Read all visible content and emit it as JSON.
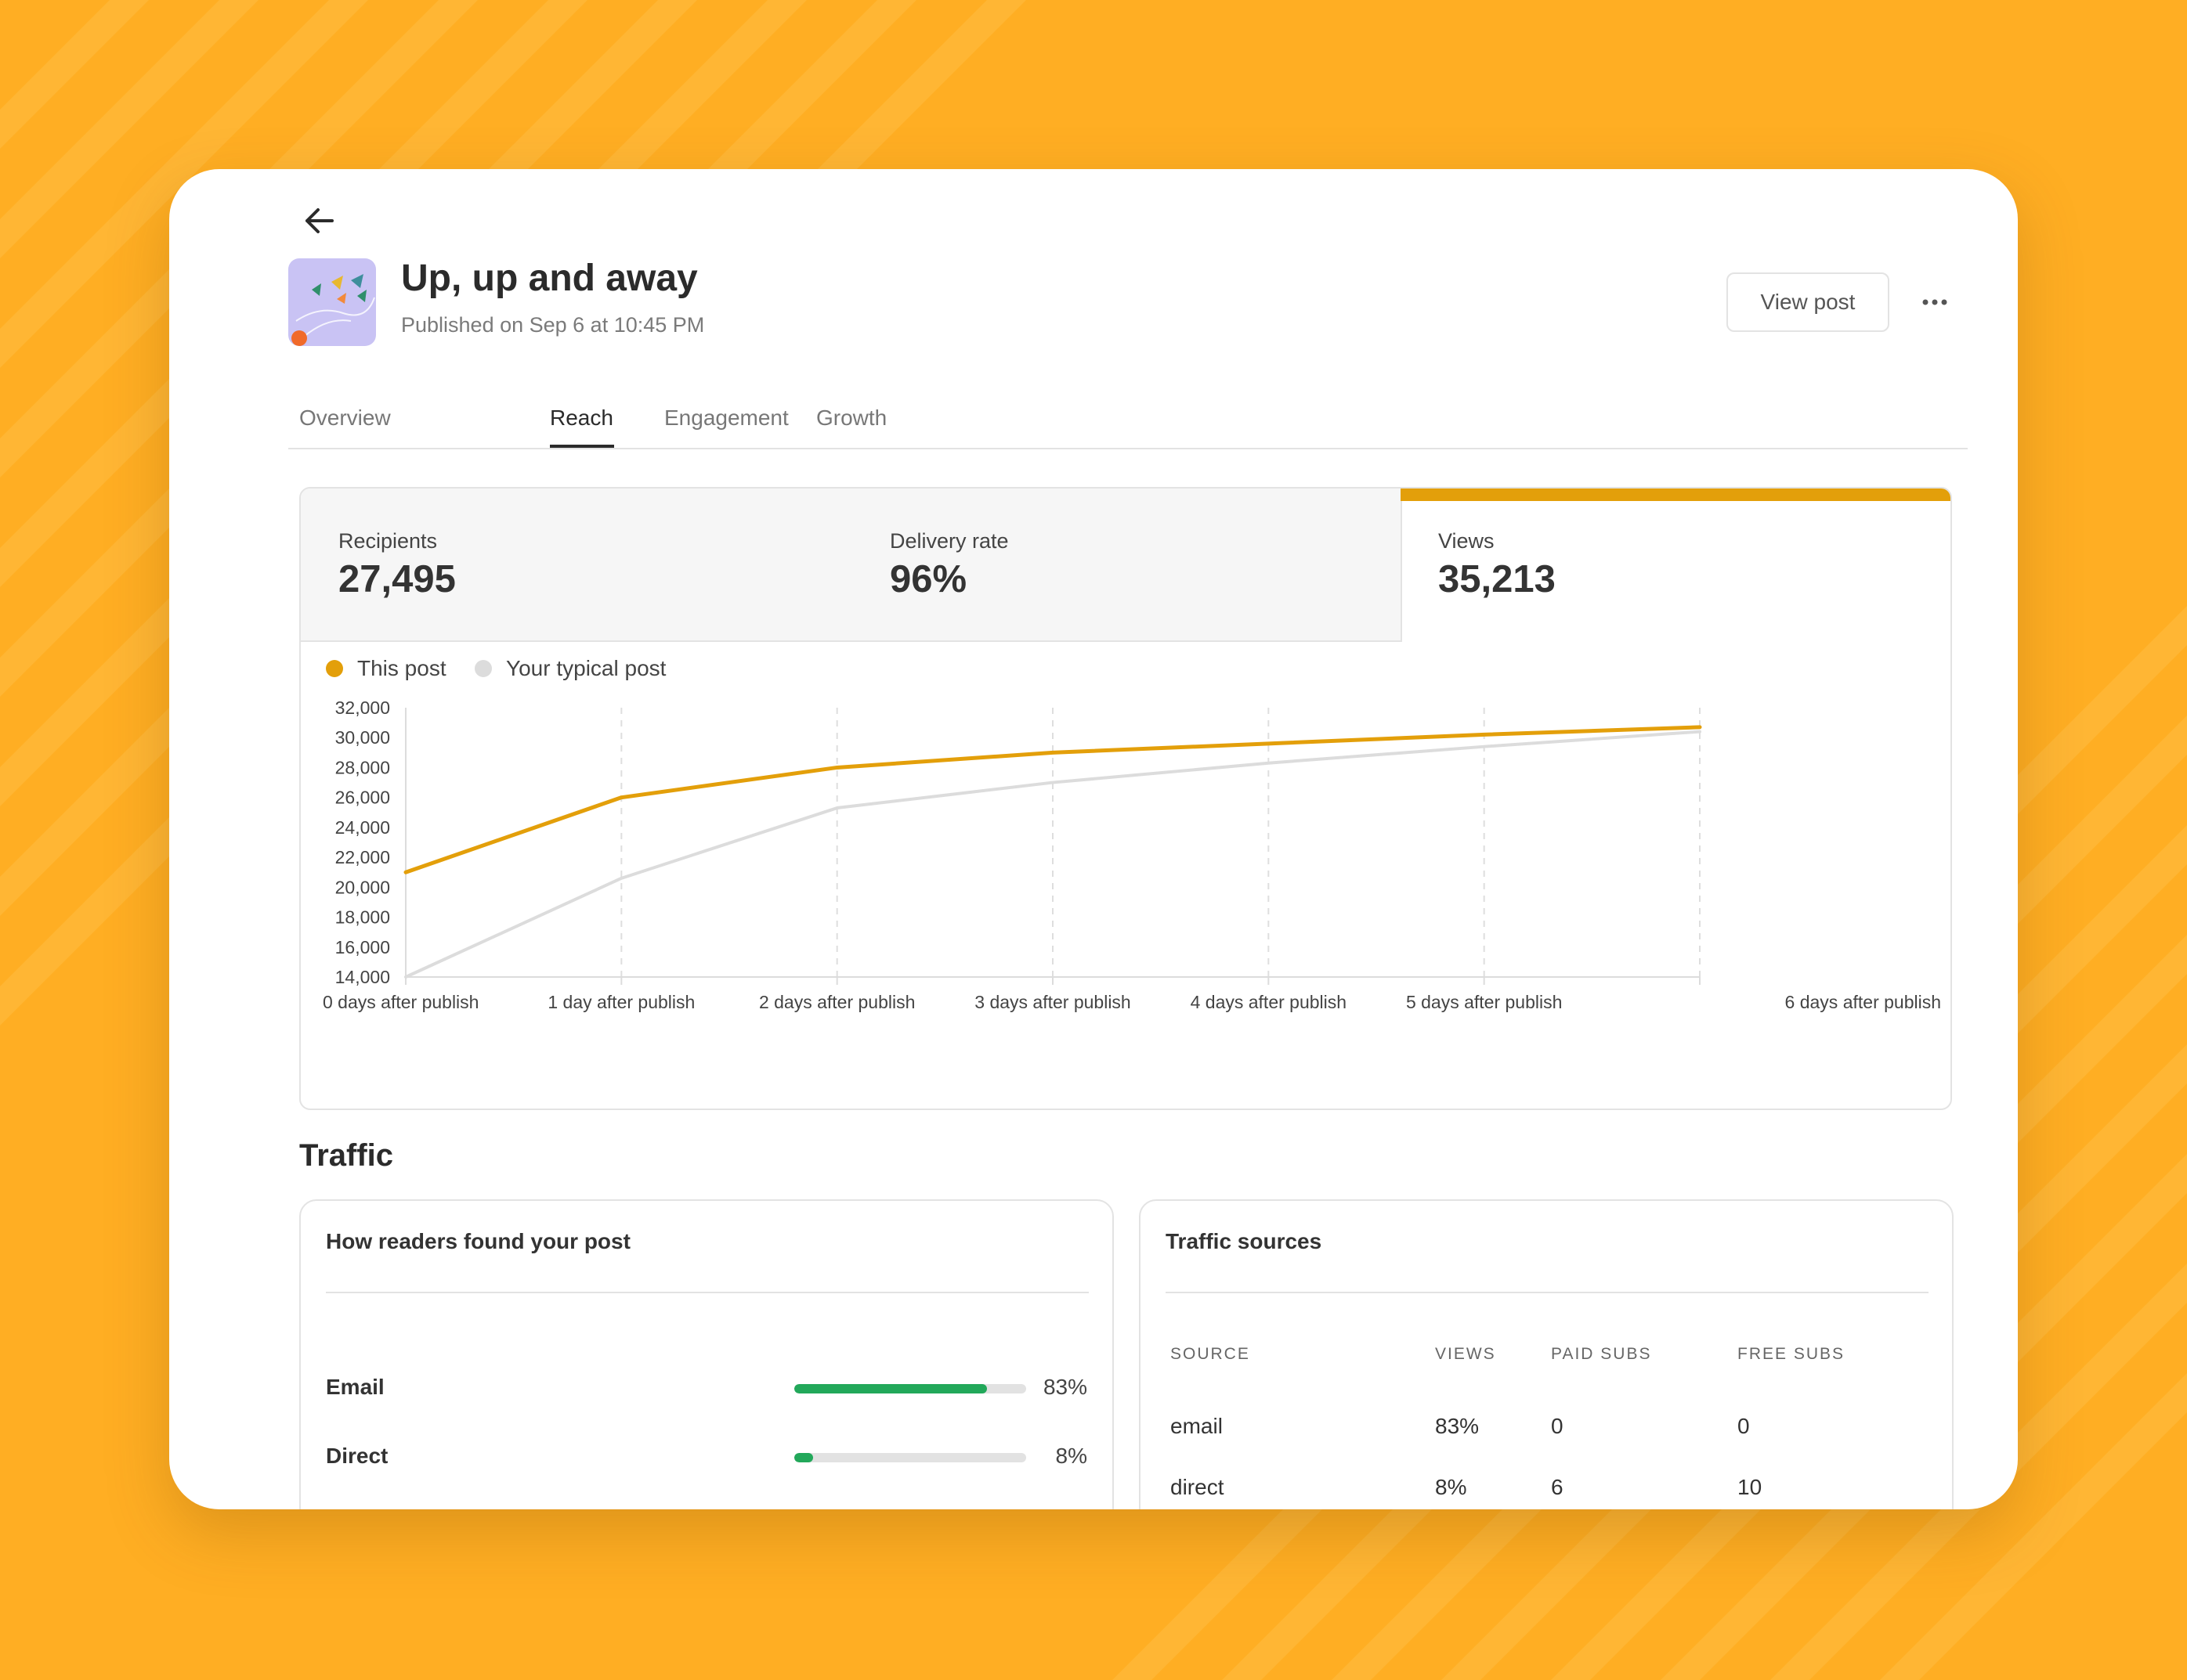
{
  "post": {
    "title": "Up, up and away",
    "published": "Published on Sep 6 at 10:45 PM",
    "thumbnail_icon": "kites-illustration"
  },
  "actions": {
    "view_post": "View post",
    "more_icon": "more-horizontal-icon",
    "back_icon": "arrow-left-icon"
  },
  "tabs": [
    {
      "label": "Overview",
      "active": false
    },
    {
      "label": "Reach",
      "active": true
    },
    {
      "label": "Engagement",
      "active": false
    },
    {
      "label": "Growth",
      "active": false
    }
  ],
  "stats": {
    "recipients": {
      "label": "Recipients",
      "value": "27,495"
    },
    "delivery_rate": {
      "label": "Delivery rate",
      "value": "96%"
    },
    "views": {
      "label": "Views",
      "value": "35,213",
      "selected": true
    }
  },
  "colors": {
    "accent": "#E39F0A",
    "typical": "#DCDCDC",
    "bar_fill": "#22A85A",
    "background": "#FFAE23"
  },
  "chart_data": {
    "type": "line",
    "categories": [
      "0 days after publish",
      "1 day after publish",
      "2 days after publish",
      "3 days after publish",
      "4 days after publish",
      "5 days after publish",
      "6 days after publish"
    ],
    "series": [
      {
        "name": "This post",
        "color": "#E39F0A",
        "values": [
          21000,
          26000,
          28000,
          29000,
          29600,
          30200,
          30700
        ]
      },
      {
        "name": "Your typical post",
        "color": "#DCDCDC",
        "values": [
          14000,
          20600,
          25300,
          27000,
          28300,
          29400,
          30400
        ]
      }
    ],
    "yticks": [
      "32,000",
      "30,000",
      "28,000",
      "26,000",
      "24,000",
      "22,000",
      "20,000",
      "18,000",
      "16,000",
      "14,000"
    ],
    "ylim": [
      14000,
      32000
    ],
    "grid": "vertical-dashed",
    "legend": "top-left"
  },
  "traffic": {
    "heading": "Traffic",
    "how_found": {
      "title": "How readers found your post",
      "items": [
        {
          "label": "Email",
          "pct": "83%",
          "fraction": 0.83
        },
        {
          "label": "Direct",
          "pct": "8%",
          "fraction": 0.08
        }
      ]
    },
    "sources": {
      "title": "Traffic sources",
      "columns": [
        "SOURCE",
        "VIEWS",
        "PAID SUBS",
        "FREE SUBS"
      ],
      "rows": [
        [
          "email",
          "83%",
          "0",
          "0"
        ],
        [
          "direct",
          "8%",
          "6",
          "10"
        ]
      ]
    }
  }
}
